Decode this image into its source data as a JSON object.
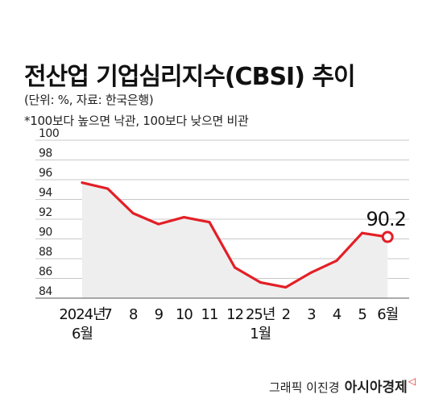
{
  "title": "전산업 기업심리지수(CBSI) 추이",
  "source_note": "(단위: %, 자료: 한국은행)",
  "footnote": "*100보다 높으면 낙관, 100보다 낮으면 비관",
  "credit": "그래픽 이진경",
  "brand": "아시아경제",
  "brand_mark": "◁",
  "colors": {
    "line": "#e31f26",
    "area": "#eeeeee",
    "grid": "#c8c8c8",
    "end_marker_fill": "#ffffff"
  },
  "chart_data": {
    "type": "area",
    "ylim": [
      84,
      100
    ],
    "y_ticks": [
      84,
      86,
      88,
      90,
      92,
      94,
      96,
      98,
      100
    ],
    "grid": true,
    "x": [
      {
        "label": "2024년",
        "sublabel": "6월"
      },
      {
        "label": "7",
        "sublabel": ""
      },
      {
        "label": "8",
        "sublabel": ""
      },
      {
        "label": "9",
        "sublabel": ""
      },
      {
        "label": "10",
        "sublabel": ""
      },
      {
        "label": "11",
        "sublabel": ""
      },
      {
        "label": "12",
        "sublabel": ""
      },
      {
        "label": "25년",
        "sublabel": "1월"
      },
      {
        "label": "2",
        "sublabel": ""
      },
      {
        "label": "3",
        "sublabel": ""
      },
      {
        "label": "4",
        "sublabel": ""
      },
      {
        "label": "5",
        "sublabel": ""
      },
      {
        "label": "6월",
        "sublabel": ""
      }
    ],
    "series": [
      {
        "values": [
          95.7,
          95.1,
          92.6,
          91.5,
          92.2,
          91.7,
          87.1,
          85.6,
          85.1,
          86.6,
          87.8,
          90.6,
          90.2
        ]
      }
    ],
    "annotation": {
      "point_index": 12,
      "text": "90.2"
    }
  }
}
